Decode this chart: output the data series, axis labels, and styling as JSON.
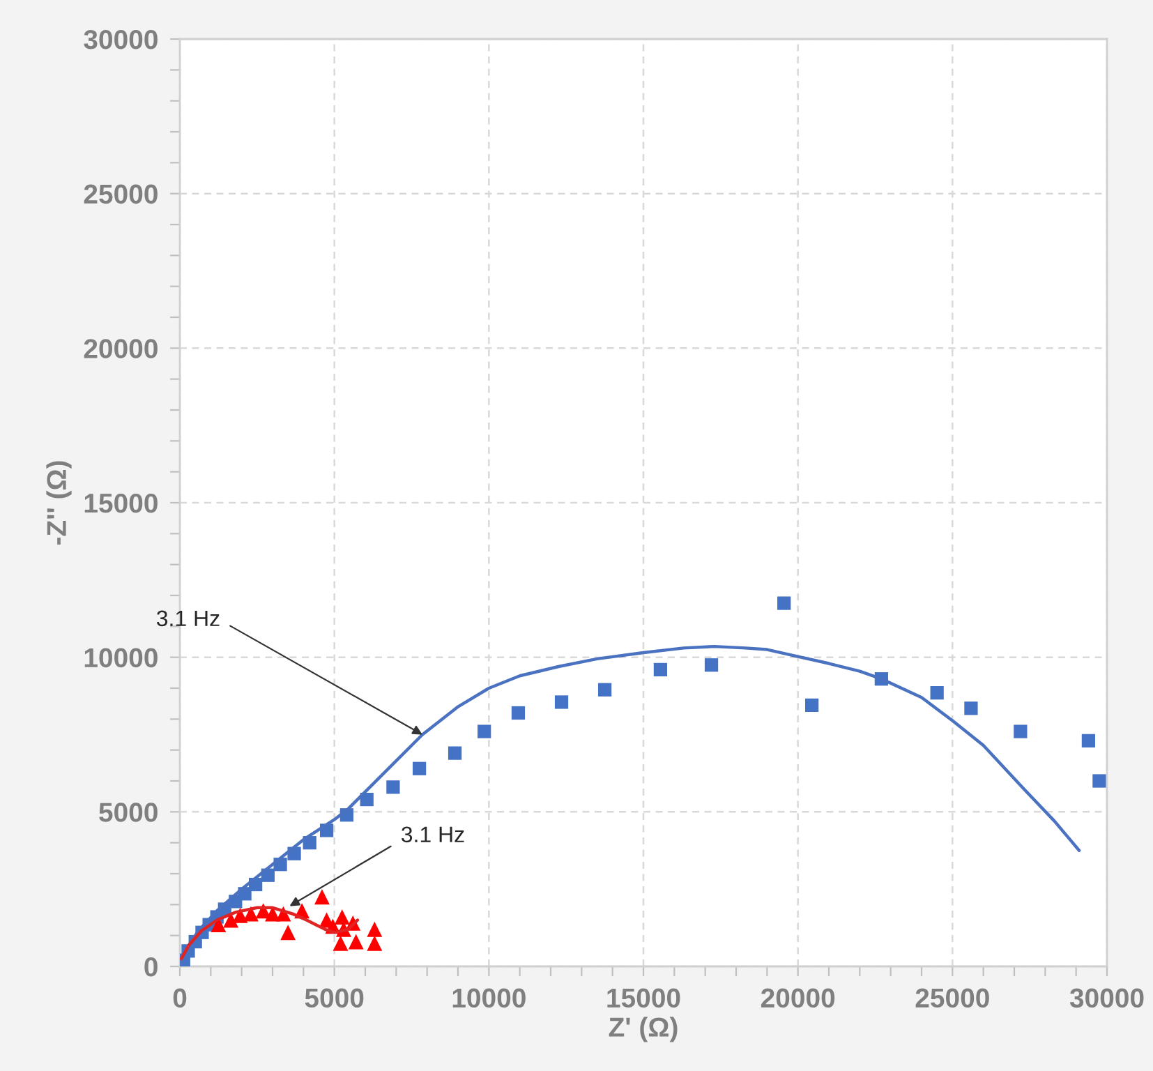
{
  "chart_data": {
    "type": "scatter",
    "xlabel": "Z' (Ω)",
    "ylabel": "-Z'' (Ω)",
    "xlim": [
      0,
      30000
    ],
    "ylim": [
      0,
      30000
    ],
    "xticks": [
      0,
      5000,
      10000,
      15000,
      20000,
      25000,
      30000
    ],
    "yticks": [
      0,
      5000,
      10000,
      15000,
      20000,
      25000,
      30000
    ],
    "grid": true,
    "legend": false,
    "series": [
      {
        "marker": "square",
        "color": "#4472c4",
        "x": [
          120,
          270,
          500,
          720,
          950,
          1200,
          1450,
          1800,
          2100,
          2450,
          2850,
          3250,
          3700,
          4200,
          4750,
          5400,
          6050,
          6900,
          7750,
          8900,
          9850,
          10950,
          12350,
          13750,
          15550,
          17200,
          19550,
          20450,
          22700,
          24500,
          25600,
          27200,
          29400,
          29750
        ],
        "values": [
          200,
          500,
          800,
          1100,
          1350,
          1600,
          1850,
          2100,
          2350,
          2650,
          2950,
          3300,
          3650,
          4000,
          4400,
          4900,
          5400,
          5800,
          6400,
          6900,
          7600,
          8200,
          8550,
          8950,
          9600,
          9750,
          11750,
          8450,
          9300,
          8850,
          8350,
          7600,
          7300,
          6000
        ]
      },
      {
        "marker": "triangle",
        "color": "#ff0000",
        "x": [
          1250,
          1650,
          1950,
          2300,
          2700,
          3000,
          3350,
          3500,
          3950,
          4600,
          4750,
          4950,
          5200,
          5250,
          5300,
          5600,
          5700,
          6300,
          6300
        ],
        "values": [
          1350,
          1500,
          1650,
          1700,
          1800,
          1700,
          1700,
          1100,
          1800,
          2250,
          1500,
          1300,
          750,
          1600,
          1200,
          1400,
          800,
          1200,
          750
        ]
      },
      {
        "type": "line",
        "line_style": "solid",
        "color": "#4a72c0",
        "x": [
          0,
          200,
          600,
          1200,
          2000,
          3000,
          4000,
          5000,
          5450,
          6200,
          6950,
          7850,
          9000,
          10000,
          11000,
          12250,
          13500,
          15000,
          16300,
          17300,
          18300,
          19000,
          20100,
          21000,
          22000,
          22700,
          24000,
          25000,
          26000,
          27300,
          28300,
          29100
        ],
        "values": [
          0,
          550,
          1150,
          1800,
          2500,
          3300,
          4100,
          4750,
          5100,
          5850,
          6600,
          7500,
          8400,
          9000,
          9400,
          9700,
          9950,
          10150,
          10300,
          10350,
          10300,
          10250,
          10000,
          9800,
          9550,
          9300,
          8700,
          7950,
          7150,
          5750,
          4700,
          3750
        ]
      },
      {
        "type": "line",
        "line_style": "solid",
        "color": "#e02424",
        "x": [
          50,
          300,
          700,
          1200,
          1800,
          2500,
          3000,
          3650,
          4100,
          4400,
          4700,
          5000,
          5250,
          5450,
          5650,
          5750
        ],
        "values": [
          250,
          700,
          1150,
          1500,
          1750,
          1900,
          1900,
          1700,
          1500,
          1350,
          1200,
          1100,
          1150,
          1200,
          1400,
          1500
        ]
      }
    ],
    "annotations": [
      {
        "text": "3.1 Hz",
        "x": 7850,
        "y": 7500
      },
      {
        "text": "3.1 Hz",
        "x": 3550,
        "y": 1950
      }
    ]
  }
}
